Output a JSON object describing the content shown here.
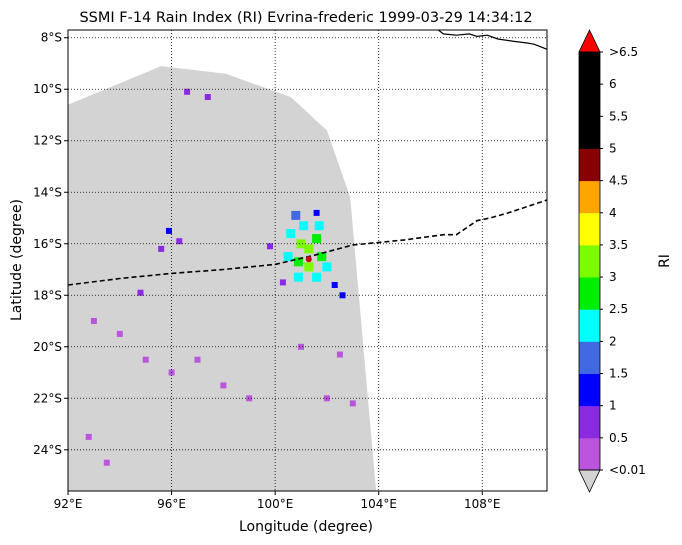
{
  "chart_data": {
    "type": "heatmap",
    "title": "SSMI F-14 Rain Index (RI) Evrina-frederic 1999-03-29 14:34:12",
    "xlabel": "Longitude (degree)",
    "ylabel": "Latitude (degree)",
    "xlim": [
      92,
      110.5
    ],
    "ylim": [
      -25.6,
      -7.7
    ],
    "grid": true,
    "x_ticks": [
      {
        "value": 92,
        "label": "92°E"
      },
      {
        "value": 96,
        "label": "96°E"
      },
      {
        "value": 100,
        "label": "100°E"
      },
      {
        "value": 104,
        "label": "104°E"
      },
      {
        "value": 108,
        "label": "108°E"
      }
    ],
    "y_ticks": [
      {
        "value": -8,
        "label": "8°S"
      },
      {
        "value": -10,
        "label": "10°S"
      },
      {
        "value": -12,
        "label": "12°S"
      },
      {
        "value": -14,
        "label": "14°S"
      },
      {
        "value": -16,
        "label": "16°S"
      },
      {
        "value": -18,
        "label": "18°S"
      },
      {
        "value": -20,
        "label": "20°S"
      },
      {
        "value": -22,
        "label": "22°S"
      },
      {
        "value": -24,
        "label": "24°S"
      }
    ],
    "colorbar": {
      "label": "RI",
      "bounds": [
        0.01,
        0.5,
        1,
        1.5,
        2,
        2.5,
        3,
        3.5,
        4,
        4.5,
        5,
        5.5,
        6,
        6.5
      ],
      "colors": [
        "#bb55dd",
        "#8a2be2",
        "#0000ff",
        "#4169e1",
        "#00ffff",
        "#00ee00",
        "#7cfc00",
        "#ffff00",
        "#ffa500",
        "#880000",
        "#000000",
        "#000000",
        "#000000"
      ],
      "under_color": "#d3d3d3",
      "over_color": "#ff0000",
      "tick_labels": [
        {
          "value": 0.01,
          "label": "<0.01"
        },
        {
          "value": 0.5,
          "label": "0.5"
        },
        {
          "value": 1,
          "label": "1"
        },
        {
          "value": 1.5,
          "label": "1.5"
        },
        {
          "value": 2,
          "label": "2"
        },
        {
          "value": 2.5,
          "label": "2.5"
        },
        {
          "value": 3,
          "label": "3"
        },
        {
          "value": 3.5,
          "label": "3.5"
        },
        {
          "value": 4,
          "label": "4"
        },
        {
          "value": 4.5,
          "label": "4.5"
        },
        {
          "value": 5,
          "label": "5"
        },
        {
          "value": 5.5,
          "label": "5.5"
        },
        {
          "value": 6,
          "label": "6"
        },
        {
          "value": 6.5,
          "label": ">6.5"
        }
      ]
    },
    "swath": {
      "corners_lonlat": [
        [
          92,
          -10.6
        ],
        [
          95.6,
          -9.1
        ],
        [
          98.1,
          -9.4
        ],
        [
          100.6,
          -10.3
        ],
        [
          102,
          -11.6
        ],
        [
          102.9,
          -14.2
        ],
        [
          103.9,
          -25.6
        ],
        [
          92,
          -25.6
        ]
      ],
      "fill_color": "#d3d3d3"
    },
    "track": {
      "style": "dashed",
      "color": "#000000",
      "points": [
        [
          92,
          -17.6
        ],
        [
          94,
          -17.35
        ],
        [
          96,
          -17.15
        ],
        [
          98,
          -17.0
        ],
        [
          100,
          -16.8
        ],
        [
          101.5,
          -16.45
        ],
        [
          103,
          -16.05
        ],
        [
          105,
          -15.85
        ],
        [
          106.5,
          -15.65
        ],
        [
          107,
          -15.65
        ],
        [
          107.8,
          -15.1
        ],
        [
          108.3,
          -15.0
        ],
        [
          109,
          -14.8
        ],
        [
          110.5,
          -14.3
        ]
      ]
    },
    "storm_center": [
      101.3,
      -16.6
    ],
    "coastline": {
      "color": "#000000",
      "points": [
        [
          106.3,
          -7.7
        ],
        [
          106.5,
          -7.85
        ],
        [
          107.0,
          -7.9
        ],
        [
          107.5,
          -7.85
        ],
        [
          107.8,
          -7.95
        ],
        [
          108.2,
          -7.9
        ],
        [
          108.6,
          -8.05
        ],
        [
          109.3,
          -8.15
        ],
        [
          109.7,
          -8.2
        ],
        [
          110.0,
          -8.25
        ],
        [
          110.5,
          -8.45
        ]
      ]
    },
    "rain_cells": [
      {
        "lon": 101.3,
        "lat": -16.2,
        "ri": 3.2
      },
      {
        "lon": 101.0,
        "lat": -16.0,
        "ri": 3.0
      },
      {
        "lon": 101.6,
        "lat": -15.8,
        "ri": 2.8
      },
      {
        "lon": 100.9,
        "lat": -16.7,
        "ri": 2.7
      },
      {
        "lon": 101.8,
        "lat": -16.5,
        "ri": 2.6
      },
      {
        "lon": 101.3,
        "lat": -16.9,
        "ri": 3.1
      },
      {
        "lon": 101.7,
        "lat": -15.3,
        "ri": 2.4
      },
      {
        "lon": 100.6,
        "lat": -15.6,
        "ri": 2.3
      },
      {
        "lon": 101.1,
        "lat": -15.3,
        "ri": 2.2
      },
      {
        "lon": 102.0,
        "lat": -16.9,
        "ri": 2.2
      },
      {
        "lon": 100.5,
        "lat": -16.5,
        "ri": 2.1
      },
      {
        "lon": 101.6,
        "lat": -17.3,
        "ri": 2.1
      },
      {
        "lon": 100.9,
        "lat": -17.3,
        "ri": 2.0
      },
      {
        "lon": 100.8,
        "lat": -14.9,
        "ri": 1.6
      },
      {
        "lon": 101.6,
        "lat": -14.8,
        "ri": 1.3
      },
      {
        "lon": 102.3,
        "lat": -17.6,
        "ri": 1.2
      },
      {
        "lon": 102.6,
        "lat": -18.0,
        "ri": 1.0
      },
      {
        "lon": 100.3,
        "lat": -17.5,
        "ri": 0.8
      },
      {
        "lon": 99.8,
        "lat": -16.1,
        "ri": 0.7
      },
      {
        "lon": 95.9,
        "lat": -15.5,
        "ri": 1.1
      },
      {
        "lon": 96.3,
        "lat": -15.9,
        "ri": 0.9
      },
      {
        "lon": 95.6,
        "lat": -16.2,
        "ri": 0.6
      },
      {
        "lon": 94.8,
        "lat": -17.9,
        "ri": 0.9
      },
      {
        "lon": 96.6,
        "lat": -10.1,
        "ri": 0.6
      },
      {
        "lon": 97.4,
        "lat": -10.3,
        "ri": 0.5
      },
      {
        "lon": 93.0,
        "lat": -19.0,
        "ri": 0.3
      },
      {
        "lon": 94.0,
        "lat": -19.5,
        "ri": 0.3
      },
      {
        "lon": 95.0,
        "lat": -20.5,
        "ri": 0.3
      },
      {
        "lon": 96.0,
        "lat": -21.0,
        "ri": 0.3
      },
      {
        "lon": 97.0,
        "lat": -20.5,
        "ri": 0.3
      },
      {
        "lon": 98.0,
        "lat": -21.5,
        "ri": 0.3
      },
      {
        "lon": 99.0,
        "lat": -22.0,
        "ri": 0.3
      },
      {
        "lon": 92.8,
        "lat": -23.5,
        "ri": 0.3
      },
      {
        "lon": 93.5,
        "lat": -24.5,
        "ri": 0.3
      },
      {
        "lon": 101.0,
        "lat": -20.0,
        "ri": 0.3
      },
      {
        "lon": 102.5,
        "lat": -20.3,
        "ri": 0.3
      },
      {
        "lon": 102.0,
        "lat": -22.0,
        "ri": 0.3
      },
      {
        "lon": 103.0,
        "lat": -22.2,
        "ri": 0.3
      }
    ]
  }
}
